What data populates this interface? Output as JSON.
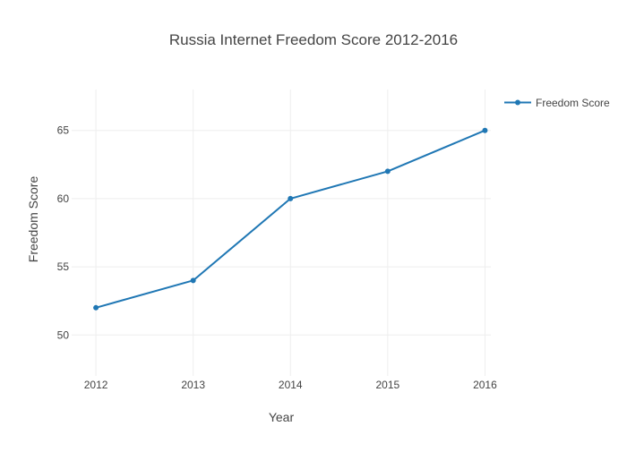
{
  "chart_data": {
    "type": "line",
    "title": "Russia Internet Freedom Score 2012-2016",
    "xlabel": "Year",
    "ylabel": "Freedom Score",
    "x": [
      2012,
      2013,
      2014,
      2015,
      2016
    ],
    "series": [
      {
        "name": "Freedom Score",
        "values": [
          52,
          54,
          60,
          62,
          65
        ]
      }
    ],
    "xticks": [
      "2012",
      "2013",
      "2014",
      "2015",
      "2016"
    ],
    "yticks": [
      50,
      55,
      60,
      65
    ],
    "xlim": [
      2011.99,
      2016.3
    ],
    "ylim": [
      47,
      68
    ],
    "grid": true,
    "legend_position": "top-right",
    "colors": {
      "line": "#1f77b4",
      "grid": "#eeeeee",
      "text": "#444444"
    }
  }
}
